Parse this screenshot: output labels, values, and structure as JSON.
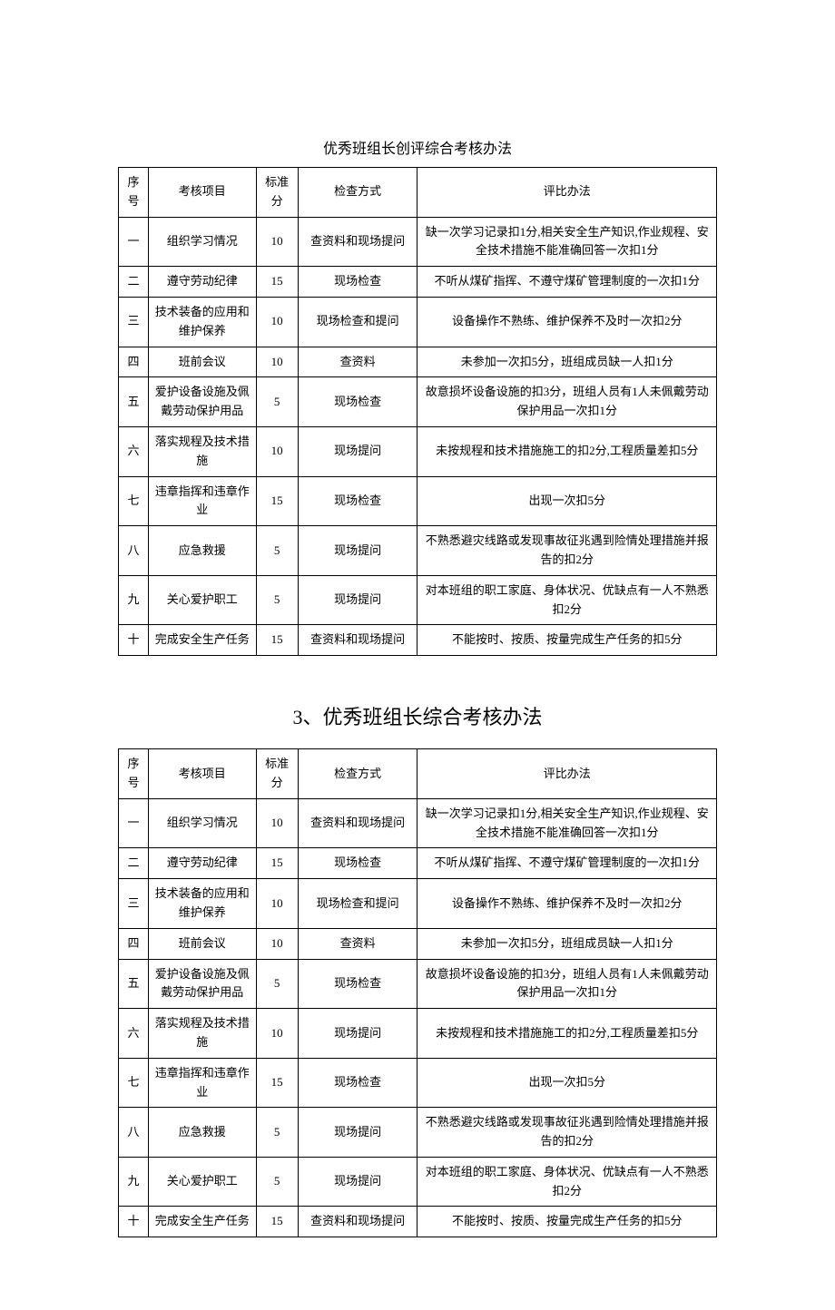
{
  "title1": "优秀班组长创评综合考核办法",
  "title2": "3、优秀班组长综合考核办法",
  "headers": {
    "col1": "序号",
    "col2": "考核项目",
    "col3": "标准分",
    "col4": "检查方式",
    "col5": "评比办法"
  },
  "rows": [
    {
      "n": "一",
      "item": "组织学习情况",
      "score": "10",
      "method": "查资料和现场提问",
      "rule": "缺一次学习记录扣1分,相关安全生产知识,作业规程、安全技术措施不能准确回答一次扣1分"
    },
    {
      "n": "二",
      "item": "遵守劳动纪律",
      "score": "15",
      "method": "现场检查",
      "rule": "不听从煤矿指挥、不遵守煤矿管理制度的一次扣1分"
    },
    {
      "n": "三",
      "item": "技术装备的应用和维护保养",
      "score": "10",
      "method": "现场检查和提问",
      "rule": "设备操作不熟练、维护保养不及时一次扣2分"
    },
    {
      "n": "四",
      "item": "班前会议",
      "score": "10",
      "method": "查资料",
      "rule": "未参加一次扣5分，班组成员缺一人扣1分"
    },
    {
      "n": "五",
      "item": "爱护设备设施及佩戴劳动保护用品",
      "score": "5",
      "method": "现场检查",
      "rule": "故意损坏设备设施的扣3分，班组人员有1人未佩戴劳动保护用品一次扣1分"
    },
    {
      "n": "六",
      "item": "落实规程及技术措施",
      "score": "10",
      "method": "现场提问",
      "rule": "未按规程和技术措施施工的扣2分,工程质量差扣5分"
    },
    {
      "n": "七",
      "item": "违章指挥和违章作业",
      "score": "15",
      "method": "现场检查",
      "rule": "出现一次扣5分"
    },
    {
      "n": "八",
      "item": "应急救援",
      "score": "5",
      "method": "现场提问",
      "rule": "不熟悉避灾线路或发现事故征兆遇到险情处理措施并报告的扣2分"
    },
    {
      "n": "九",
      "item": "关心爱护职工",
      "score": "5",
      "method": "现场提问",
      "rule": "对本班组的职工家庭、身体状况、优缺点有一人不熟悉扣2分"
    },
    {
      "n": "十",
      "item": "完成安全生产任务",
      "score": "15",
      "method": "查资料和现场提问",
      "rule": "不能按时、按质、按量完成生产任务的扣5分"
    }
  ]
}
